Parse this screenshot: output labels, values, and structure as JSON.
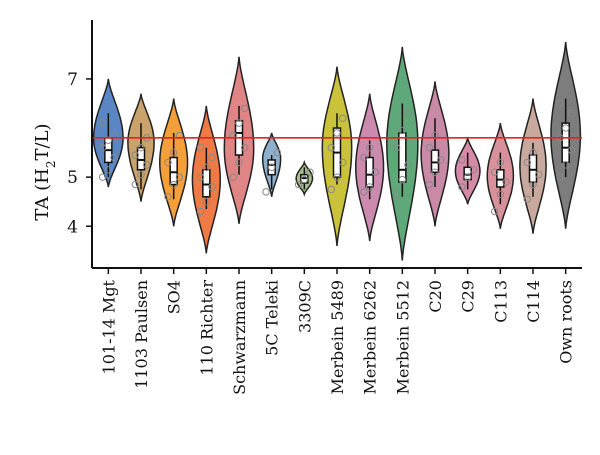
{
  "chart_data": {
    "type": "violin",
    "ylabel_parts": [
      "TA (H",
      "2",
      "T/L)"
    ],
    "yticks": [
      4,
      5,
      7
    ],
    "ylim": [
      3.15,
      8.2
    ],
    "reference_line": {
      "y": 5.8,
      "color": "#e8231c"
    },
    "categories": [
      "101-14 Mgt",
      "1103 Paulsen",
      "SO4",
      "110 Richter",
      "Schwarzmann",
      "5C Teleki",
      "3309C",
      "Merbein 5489",
      "Merbein 6262",
      "Merbein 5512",
      "C20",
      "C29",
      "C113",
      "C114",
      "Own roots"
    ],
    "colors": [
      "#5a86c4",
      "#c9a36b",
      "#f4a03a",
      "#f07a45",
      "#e08585",
      "#8fb0cc",
      "#a6bf8c",
      "#c9c23a",
      "#cc8aae",
      "#5ea879",
      "#c98aa8",
      "#d48aa8",
      "#d8909a",
      "#c9a99e",
      "#7d7d7d"
    ],
    "series": [
      {
        "min": 5.0,
        "q1": 5.3,
        "median": 5.55,
        "q3": 5.8,
        "max": 6.3,
        "lo": 4.8,
        "hi": 7.0,
        "shape": 0.45,
        "width": 0.9,
        "points": [
          5.0,
          5.15,
          5.4,
          5.6,
          5.75,
          5.85,
          6.1
        ]
      },
      {
        "min": 4.75,
        "q1": 5.15,
        "median": 5.35,
        "q3": 5.6,
        "max": 6.1,
        "lo": 4.5,
        "hi": 6.7,
        "shape": 0.55,
        "width": 0.8,
        "points": [
          4.85,
          5.05,
          5.25,
          5.45,
          5.6,
          5.8
        ]
      },
      {
        "min": 4.55,
        "q1": 4.85,
        "median": 5.1,
        "q3": 5.4,
        "max": 5.9,
        "lo": 4.0,
        "hi": 6.6,
        "shape": 0.5,
        "width": 0.85,
        "points": [
          4.6,
          4.85,
          5.0,
          5.3,
          5.5,
          5.85
        ]
      },
      {
        "min": 4.35,
        "q1": 4.6,
        "median": 4.85,
        "q3": 5.15,
        "max": 5.6,
        "lo": 3.45,
        "hi": 6.45,
        "shape": 0.5,
        "width": 0.85,
        "points": [
          4.3,
          4.5,
          4.8,
          5.0,
          5.2,
          5.4,
          5.6
        ]
      },
      {
        "min": 5.05,
        "q1": 5.45,
        "median": 5.9,
        "q3": 6.15,
        "max": 6.45,
        "lo": 4.05,
        "hi": 7.45,
        "shape": 0.45,
        "width": 0.9,
        "points": [
          5.0,
          5.3,
          5.6,
          5.85,
          6.1,
          6.4
        ]
      },
      {
        "min": 4.75,
        "q1": 5.05,
        "median": 5.25,
        "q3": 5.35,
        "max": 5.45,
        "lo": 4.6,
        "hi": 5.9,
        "shape": 0.6,
        "width": 0.55,
        "points": [
          4.7,
          5.2,
          5.5
        ]
      },
      {
        "min": 4.75,
        "q1": 4.88,
        "median": 4.98,
        "q3": 5.05,
        "max": 5.2,
        "lo": 4.65,
        "hi": 5.3,
        "shape": 0.5,
        "width": 0.5,
        "points": [
          4.85,
          4.95,
          5.1
        ]
      },
      {
        "min": 4.85,
        "q1": 5.0,
        "median": 5.5,
        "q3": 6.0,
        "max": 6.3,
        "lo": 3.6,
        "hi": 7.25,
        "shape": 0.55,
        "width": 0.9,
        "points": [
          4.75,
          5.0,
          5.3,
          5.6,
          5.9,
          6.2
        ]
      },
      {
        "min": 4.55,
        "q1": 4.8,
        "median": 5.05,
        "q3": 5.4,
        "max": 5.75,
        "lo": 3.7,
        "hi": 6.7,
        "shape": 0.5,
        "width": 0.85,
        "points": [
          4.7,
          4.8,
          5.1,
          5.4,
          5.6
        ]
      },
      {
        "min": 4.6,
        "q1": 4.9,
        "median": 5.15,
        "q3": 5.9,
        "max": 6.5,
        "lo": 3.3,
        "hi": 7.65,
        "shape": 0.55,
        "width": 0.95,
        "points": [
          4.65,
          4.95,
          5.25,
          5.6,
          5.95,
          6.3
        ]
      },
      {
        "min": 4.8,
        "q1": 5.1,
        "median": 5.3,
        "q3": 5.55,
        "max": 6.2,
        "lo": 4.0,
        "hi": 6.95,
        "shape": 0.5,
        "width": 0.85,
        "points": [
          4.85,
          5.1,
          5.35,
          5.6,
          5.85
        ]
      },
      {
        "min": 4.75,
        "q1": 4.95,
        "median": 5.05,
        "q3": 5.2,
        "max": 5.5,
        "lo": 4.45,
        "hi": 5.8,
        "shape": 0.5,
        "width": 0.75,
        "points": [
          4.8,
          5.0,
          5.15,
          5.35
        ]
      },
      {
        "min": 4.45,
        "q1": 4.8,
        "median": 4.95,
        "q3": 5.15,
        "max": 5.5,
        "lo": 3.95,
        "hi": 6.1,
        "shape": 0.5,
        "width": 0.8,
        "points": [
          4.3,
          4.65,
          4.9,
          5.1,
          5.3
        ]
      },
      {
        "min": 4.6,
        "q1": 4.9,
        "median": 5.15,
        "q3": 5.45,
        "max": 5.7,
        "lo": 3.85,
        "hi": 6.6,
        "shape": 0.5,
        "width": 0.8,
        "points": [
          4.55,
          4.85,
          5.05,
          5.3,
          5.5
        ]
      },
      {
        "min": 5.0,
        "q1": 5.3,
        "median": 5.6,
        "q3": 6.1,
        "max": 6.6,
        "lo": 3.95,
        "hi": 7.75,
        "shape": 0.5,
        "width": 0.9,
        "points": [
          5.0,
          5.25,
          5.55,
          5.8,
          6.0,
          6.3,
          6.5
        ]
      }
    ]
  }
}
